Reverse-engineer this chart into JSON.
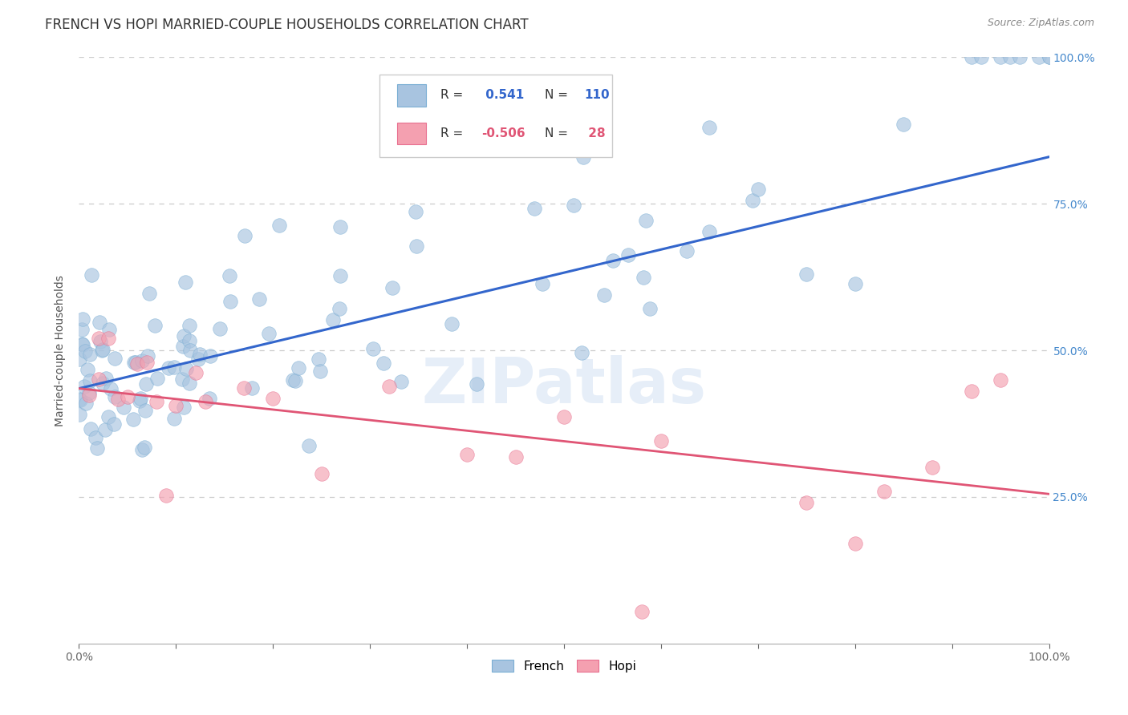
{
  "title": "FRENCH VS HOPI MARRIED-COUPLE HOUSEHOLDS CORRELATION CHART",
  "source": "Source: ZipAtlas.com",
  "ylabel": "Married-couple Households",
  "watermark": "ZIPatlas",
  "french_R": 0.541,
  "french_N": 110,
  "hopi_R": -0.506,
  "hopi_N": 28,
  "french_color": "#a8c4e0",
  "hopi_color": "#f4a0b0",
  "french_edge_color": "#7bafd4",
  "hopi_edge_color": "#e87090",
  "french_line_color": "#3366cc",
  "hopi_line_color": "#e05575",
  "legend_french_label": "French",
  "legend_hopi_label": "Hopi",
  "xlim": [
    0.0,
    1.0
  ],
  "ylim": [
    0.0,
    1.0
  ],
  "yticks": [
    0.25,
    0.5,
    0.75,
    1.0
  ],
  "ytick_labels": [
    "25.0%",
    "50.0%",
    "75.0%",
    "100.0%"
  ],
  "background_color": "#ffffff",
  "grid_color": "#cccccc",
  "title_fontsize": 12,
  "axis_label_fontsize": 10,
  "tick_fontsize": 10,
  "french_line_y0": 0.435,
  "french_line_y1": 0.83,
  "hopi_line_y0": 0.435,
  "hopi_line_y1": 0.255,
  "french_seed": 42,
  "hopi_seed": 99
}
